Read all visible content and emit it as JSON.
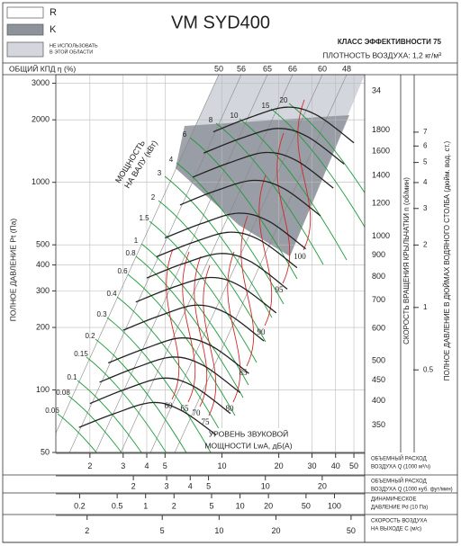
{
  "chart_data": {
    "type": "fan-curve",
    "title": "VM SYD400",
    "legend": [
      {
        "label": [
          "R"
        ],
        "color": "#ffffff"
      },
      {
        "label": [
          "K"
        ],
        "color": "#8e939b"
      },
      {
        "label": [
          "НЕ ИСПОЛЬЗОВАТЬ",
          "В ЭТОЙ ОБЛАСТИ"
        ],
        "color": "#d3d6dc"
      }
    ],
    "efficiency_class": "КЛАСС ЭФФЕКТИВНОСТИ 75",
    "air_density": "ПЛОТНОСТЬ ВОЗДУХА: 1,2 кг/м³",
    "efficiency": {
      "label": "ОБЩИЙ КПД η (%)",
      "values": [
        50,
        56,
        65,
        66,
        60,
        48
      ]
    },
    "ylabel": "ПОЛНОЕ ДАВЛЕНИЕ Pt (Па)",
    "log_y": true,
    "ylim": [
      50,
      3300
    ],
    "yticks": [
      50,
      100,
      200,
      300,
      400,
      500,
      1000,
      2000,
      3000
    ],
    "y2label": "ПОЛНОЕ ДАВЛЕНИЕ В ДЮЙМАХ ВОДЯНОГО СТОЛБА (дюйм. вод. ст.)",
    "y2lim": [
      0.2,
      13.25
    ],
    "y2ticks": [
      0.5,
      1,
      2,
      3,
      4,
      5,
      6,
      7
    ],
    "xlabel": [
      "ОБЪЕМНЫЙ РАСХОД",
      "ВОЗДУХА Q (1000 м³/ч)"
    ],
    "log_x": true,
    "xlim": [
      1.32,
      57
    ],
    "xticks": [
      2,
      3,
      4,
      5,
      10,
      20,
      30,
      40,
      50
    ],
    "grid": true,
    "x_axes": [
      {
        "label": [
          "ОБЪЕМНЫЙ РАСХОД",
          "ВОЗДУХА Q (1000 куб. фут/мин)"
        ],
        "xlim": [
          0.777,
          33.55
        ],
        "xticks": [
          2,
          3,
          4,
          5,
          10,
          20
        ]
      },
      {
        "label": [
          "ДИНАМИЧЕСКОЕ",
          "ДАВЛЕНИЕ Pd (10 Па)"
        ],
        "xlim": [
          0.112,
          208.9
        ],
        "xticks": [
          0.2,
          0.5,
          1,
          2,
          5,
          10,
          20,
          50,
          100
        ]
      },
      {
        "label": [
          "СКОРОСТЬ ВОЗДУХА",
          "НА ВЫХОДЕ C (м/с)"
        ],
        "xlim": [
          1.366,
          59
        ],
        "xticks": [
          2,
          5,
          10,
          20,
          50
        ]
      }
    ],
    "speed_label": "СКОРОСТЬ ВРАЩЕНИЯ КРЫЛЬЧАТКИ n (об/мин)",
    "top_label": "34",
    "series_color": "#222222",
    "series": [
      {
        "name": 1800,
        "x": [
          9,
          14,
          22,
          32,
          50
        ],
        "values": [
          1750,
          2050,
          2300,
          2100,
          1550
        ]
      },
      {
        "name": 1600,
        "x": [
          8,
          12.4,
          19.6,
          28.4,
          44.4
        ],
        "values": [
          1383,
          1620,
          1817,
          1659,
          1225
        ]
      },
      {
        "name": 1400,
        "x": [
          7,
          10.9,
          17.1,
          24.9,
          38.9
        ],
        "values": [
          1059,
          1240,
          1392,
          1271,
          938
        ]
      },
      {
        "name": 1200,
        "x": [
          6,
          9.3,
          14.7,
          21.3,
          33.3
        ],
        "values": [
          778,
          911,
          1022,
          933,
          689
        ]
      },
      {
        "name": 1000,
        "x": [
          5,
          7.8,
          12.2,
          17.8,
          27.8
        ],
        "values": [
          540,
          633,
          710,
          648,
          478
        ]
      },
      {
        "name": 900,
        "x": [
          4.5,
          7,
          11,
          16,
          25
        ],
        "values": [
          438,
          513,
          575,
          525,
          388
        ]
      },
      {
        "name": 800,
        "x": [
          4,
          6.2,
          9.8,
          14.2,
          22.2
        ],
        "values": [
          346,
          405,
          454,
          415,
          306
        ]
      },
      {
        "name": 700,
        "x": [
          3.5,
          5.4,
          8.6,
          12.4,
          19.4
        ],
        "values": [
          265,
          310,
          348,
          318,
          235
        ]
      },
      {
        "name": 600,
        "x": [
          3,
          4.7,
          7.3,
          10.7,
          16.7
        ],
        "values": [
          194,
          228,
          256,
          233,
          172
        ]
      },
      {
        "name": 500,
        "x": [
          2.5,
          3.9,
          6.1,
          8.9,
          13.9
        ],
        "values": [
          135,
          158,
          178,
          162,
          120
        ]
      },
      {
        "name": 450,
        "x": [
          2.25,
          3.5,
          5.5,
          8,
          12.5
        ],
        "values": [
          109,
          128,
          144,
          131,
          97
        ]
      },
      {
        "name": 400,
        "x": [
          2,
          3.1,
          4.9,
          7.1,
          11.1
        ],
        "values": [
          86,
          101,
          114,
          104,
          77
        ]
      },
      {
        "name": 350,
        "x": [
          1.75,
          2.7,
          4.3,
          6.2,
          9.7
        ],
        "values": [
          66,
          77,
          87,
          79,
          59
        ]
      }
    ],
    "power": {
      "label": [
        "МОЩНОСТЬ",
        "НА ВАЛУ (кВт)"
      ],
      "color": "#1f9a3a",
      "values": [
        0.06,
        0.08,
        0.1,
        0.15,
        0.2,
        0.3,
        0.4,
        0.6,
        0.8,
        1,
        1.5,
        2,
        3,
        4,
        6,
        8,
        10,
        15,
        20
      ]
    },
    "sound": {
      "label": [
        "УРОВЕНЬ ЗВУКОВОЙ",
        "МОЩНОСТИ LwA, дБ(А)"
      ],
      "color": "#d22a2a",
      "values": [
        60,
        65,
        70,
        75,
        80,
        85,
        90,
        95,
        100
      ]
    }
  }
}
